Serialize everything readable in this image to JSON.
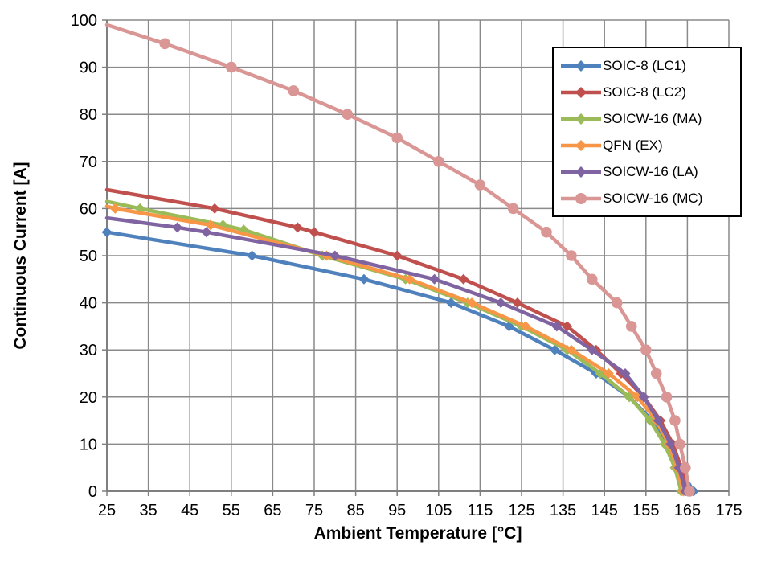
{
  "chart_data": {
    "type": "line",
    "title": "",
    "xlabel": "Ambient Temperature [°C]",
    "ylabel": "Continuous Current [A]",
    "xlim": [
      25,
      175
    ],
    "ylim": [
      0,
      100
    ],
    "x_ticks": [
      25,
      35,
      45,
      55,
      65,
      75,
      85,
      95,
      105,
      115,
      125,
      135,
      145,
      155,
      165,
      175
    ],
    "y_ticks": [
      0,
      10,
      20,
      30,
      40,
      50,
      60,
      70,
      80,
      90,
      100
    ],
    "grid": true,
    "legend_position": "top-right-inside",
    "colors": {
      "background": "#FFFFFF",
      "grid": "#8A8A8A",
      "axis": "#7F7F7F",
      "text": "#000000",
      "legend_border": "#000000"
    },
    "series": [
      {
        "name": "SOIC-8 (LC1)",
        "color": "#4F81BD",
        "marker": "diamond",
        "markers_from": 0,
        "points": [
          [
            25,
            55
          ],
          [
            60,
            50
          ],
          [
            87,
            45
          ],
          [
            108,
            40
          ],
          [
            122,
            35
          ],
          [
            133,
            30
          ],
          [
            143,
            25
          ],
          [
            151,
            20
          ],
          [
            156.5,
            15
          ],
          [
            160,
            10
          ],
          [
            163,
            5
          ],
          [
            166.5,
            0
          ]
        ]
      },
      {
        "name": "SOIC-8 (LC2)",
        "color": "#C0504D",
        "marker": "diamond",
        "markers_from": 1,
        "points": [
          [
            25,
            64
          ],
          [
            51,
            60
          ],
          [
            71,
            56
          ],
          [
            75,
            55
          ],
          [
            95,
            50
          ],
          [
            111,
            45
          ],
          [
            124,
            40
          ],
          [
            136,
            35
          ],
          [
            143,
            30
          ],
          [
            149,
            25
          ],
          [
            154.5,
            20
          ],
          [
            158.5,
            15
          ],
          [
            161.5,
            10
          ],
          [
            163.5,
            5
          ],
          [
            165,
            0
          ]
        ]
      },
      {
        "name": "SOICW-16 (MA)",
        "color": "#9BBB59",
        "marker": "diamond",
        "markers_from": 1,
        "points": [
          [
            25,
            61.5
          ],
          [
            33,
            60
          ],
          [
            53,
            56.5
          ],
          [
            58,
            55.5
          ],
          [
            77,
            50
          ],
          [
            97,
            45
          ],
          [
            112,
            40
          ],
          [
            125,
            35
          ],
          [
            136,
            30
          ],
          [
            144,
            25
          ],
          [
            151,
            20
          ],
          [
            156,
            15
          ],
          [
            159.5,
            10
          ],
          [
            162,
            5
          ],
          [
            163.5,
            0
          ]
        ]
      },
      {
        "name": "QFN (EX)",
        "color": "#F79646",
        "marker": "diamond",
        "markers_from": 1,
        "points": [
          [
            25,
            60.5
          ],
          [
            27,
            60
          ],
          [
            50,
            56.5
          ],
          [
            78,
            50
          ],
          [
            98,
            45
          ],
          [
            113,
            40
          ],
          [
            126,
            35
          ],
          [
            137,
            30
          ],
          [
            146,
            25
          ],
          [
            153,
            20
          ],
          [
            157.5,
            15
          ],
          [
            160.5,
            10
          ],
          [
            162.5,
            5
          ],
          [
            164,
            0
          ]
        ]
      },
      {
        "name": "SOICW-16 (LA)",
        "color": "#8064A2",
        "marker": "diamond",
        "markers_from": 1,
        "points": [
          [
            25,
            58
          ],
          [
            42,
            56
          ],
          [
            49,
            55
          ],
          [
            80,
            50
          ],
          [
            104,
            45
          ],
          [
            120,
            40
          ],
          [
            133.5,
            35
          ],
          [
            142,
            30
          ],
          [
            150,
            25
          ],
          [
            154.5,
            20
          ],
          [
            158,
            15
          ],
          [
            161,
            10
          ],
          [
            163,
            5
          ],
          [
            164.5,
            0
          ]
        ]
      },
      {
        "name": "SOICW-16 (MC)",
        "color": "#D99694",
        "marker": "circle",
        "markers_from": 1,
        "points": [
          [
            25,
            99
          ],
          [
            39,
            95
          ],
          [
            55,
            90
          ],
          [
            70,
            85
          ],
          [
            83,
            80
          ],
          [
            95,
            75
          ],
          [
            105,
            70
          ],
          [
            115,
            65
          ],
          [
            123,
            60
          ],
          [
            131,
            55
          ],
          [
            137,
            50
          ],
          [
            142,
            45
          ],
          [
            148,
            40
          ],
          [
            151.5,
            35
          ],
          [
            155,
            30
          ],
          [
            157.5,
            25
          ],
          [
            160,
            20
          ],
          [
            162,
            15
          ],
          [
            163.2,
            10
          ],
          [
            164.5,
            5
          ],
          [
            165.5,
            0
          ]
        ]
      }
    ]
  }
}
